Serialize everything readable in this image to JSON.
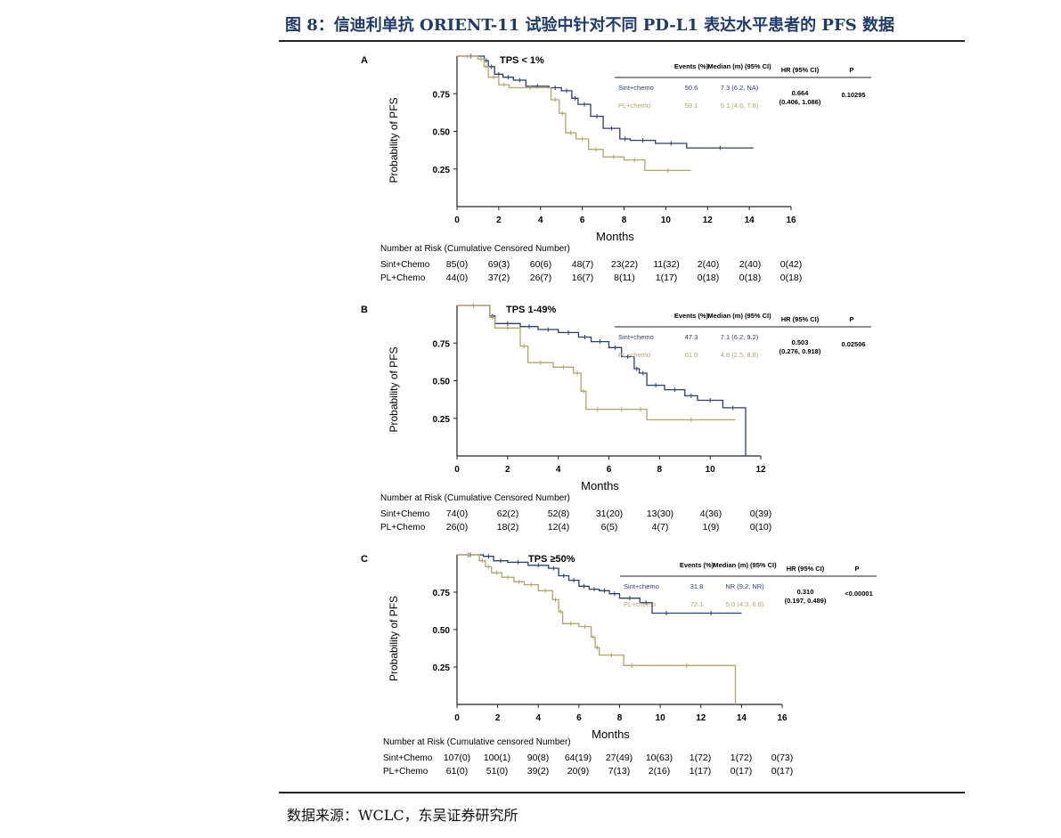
{
  "title": "图 8：信迪利单抗 ORIENT-11 试验中针对不同 PD-L1 表达水平患者的 PFS 数据",
  "source": "数据来源：WCLC，东吴证券研究所",
  "colors": {
    "sint": "#2b3f6e",
    "pl": "#b3a46a",
    "axis": "#222222"
  },
  "chart_data": [
    {
      "type": "line",
      "panel_label": "A",
      "subtitle": "TPS < 1%",
      "ylabel": "Probability of PFS",
      "xlabel": "Months",
      "xlim": [
        0,
        16
      ],
      "ylim": [
        0,
        1
      ],
      "x_ticks": [
        "0",
        "2",
        "4",
        "6",
        "8",
        "10",
        "12",
        "14",
        "16"
      ],
      "y_ticks": [
        "0.25",
        "0.50",
        "0.75"
      ],
      "table": {
        "headers": [
          "Events (%)",
          "Median (m) (95% CI)",
          "HR (95% CI)",
          "P"
        ],
        "rows": [
          {
            "name": "Sint+chemo",
            "events": "50.6",
            "median": "7.3 (6.2, NA)"
          },
          {
            "name": "PL+chemo",
            "events": "59.1",
            "median": "5.1 (4.6, 7.8)"
          }
        ],
        "hr": "0.664",
        "hr_ci": "(0.406, 1.086)",
        "p": "0.10295"
      },
      "risk_title": "Number at Risk (Cumulative Censored Number)",
      "risk_times": [
        0,
        2,
        4,
        6,
        8,
        10,
        12,
        14,
        16
      ],
      "risk": [
        {
          "name": "Sint+Chemo",
          "values": [
            "85(0)",
            "69(3)",
            "60(6)",
            "48(7)",
            "23(22)",
            "11(32)",
            "2(40)",
            "2(40)",
            "0(42)"
          ]
        },
        {
          "name": "PL+Chemo",
          "values": [
            "44(0)",
            "37(2)",
            "26(7)",
            "16(7)",
            "8(11)",
            "1(17)",
            "0(18)",
            "0(18)",
            "0(18)"
          ]
        }
      ],
      "series": [
        {
          "name": "Sint+chemo",
          "x": [
            0,
            1.3,
            1.5,
            1.8,
            2.2,
            2.7,
            3.3,
            4.4,
            5.0,
            5.5,
            5.8,
            6.4,
            7.0,
            7.8,
            8.3,
            9.5,
            11.0,
            14.2
          ],
          "y": [
            1.0,
            0.97,
            0.93,
            0.88,
            0.86,
            0.84,
            0.8,
            0.79,
            0.77,
            0.72,
            0.68,
            0.6,
            0.52,
            0.45,
            0.44,
            0.42,
            0.39,
            0.39
          ]
        },
        {
          "name": "PL+chemo",
          "x": [
            0,
            1.0,
            1.3,
            1.5,
            2.0,
            2.5,
            4.5,
            4.9,
            5.2,
            5.7,
            6.3,
            7.0,
            8.0,
            9.0,
            11.2
          ],
          "y": [
            1.0,
            0.98,
            0.93,
            0.86,
            0.81,
            0.79,
            0.71,
            0.62,
            0.49,
            0.45,
            0.38,
            0.33,
            0.31,
            0.24,
            0.24
          ]
        }
      ]
    },
    {
      "type": "line",
      "panel_label": "B",
      "subtitle": "TPS 1-49%",
      "ylabel": "Probability of PFS",
      "xlabel": "Months",
      "xlim": [
        0,
        12
      ],
      "ylim": [
        0,
        1
      ],
      "x_ticks": [
        "0",
        "2",
        "4",
        "6",
        "8",
        "10",
        "12"
      ],
      "y_ticks": [
        "0.25",
        "0.50",
        "0.75"
      ],
      "table": {
        "headers": [
          "Events (%)",
          "Median (m) (95% CI)",
          "HR (95% CI)",
          "P"
        ],
        "rows": [
          {
            "name": "Sint+chemo",
            "events": "47.3",
            "median": "7.1 (6.2, 9.2)"
          },
          {
            "name": "PL+chemo",
            "events": "61.5",
            "median": "4.8 (2.5, 8.8)"
          }
        ],
        "hr": "0.503",
        "hr_ci": "(0.276, 0.918)",
        "p": "0.02506"
      },
      "risk_title": "Number at Risk (Cumulative Censored Number)",
      "risk_times": [
        0,
        2,
        4,
        6,
        8,
        10,
        12
      ],
      "risk": [
        {
          "name": "Sint+Chemo",
          "values": [
            "74(0)",
            "62(2)",
            "52(8)",
            "31(20)",
            "13(30)",
            "4(36)",
            "0(39)"
          ]
        },
        {
          "name": "PL+Chemo",
          "values": [
            "26(0)",
            "18(2)",
            "12(4)",
            "6(5)",
            "4(7)",
            "1(9)",
            "0(10)"
          ]
        }
      ],
      "series": [
        {
          "name": "Sint+chemo",
          "x": [
            0,
            1.3,
            1.5,
            2.5,
            3.2,
            4.0,
            4.8,
            5.3,
            6.0,
            6.5,
            7.0,
            7.2,
            7.5,
            8.2,
            9.0,
            9.5,
            10.5,
            11.3,
            11.4
          ],
          "y": [
            1.0,
            0.93,
            0.88,
            0.86,
            0.84,
            0.82,
            0.79,
            0.76,
            0.72,
            0.66,
            0.58,
            0.55,
            0.47,
            0.44,
            0.4,
            0.37,
            0.32,
            0.32,
            0.0
          ]
        },
        {
          "name": "PL+chemo",
          "x": [
            0,
            1.3,
            1.5,
            2.5,
            2.8,
            3.8,
            4.6,
            4.9,
            5.1,
            6.0,
            7.0,
            7.5,
            11.0
          ],
          "y": [
            1.0,
            0.92,
            0.85,
            0.73,
            0.62,
            0.59,
            0.55,
            0.43,
            0.31,
            0.31,
            0.31,
            0.24,
            0.24
          ]
        }
      ]
    },
    {
      "type": "line",
      "panel_label": "C",
      "subtitle": "TPS ≥50%",
      "ylabel": "Probability of PFS",
      "xlabel": "Months",
      "xlim": [
        0,
        16
      ],
      "ylim": [
        0,
        1
      ],
      "x_ticks": [
        "0",
        "2",
        "4",
        "6",
        "8",
        "10",
        "12",
        "14",
        "16"
      ],
      "y_ticks": [
        "0.25",
        "0.50",
        "0.75"
      ],
      "table": {
        "headers": [
          "Events (%)",
          "Median (m) (95% CI)",
          "HR (95% CI)",
          "P"
        ],
        "rows": [
          {
            "name": "Sint+chemo",
            "events": "31.8",
            "median": "NR (9.2, NR)"
          },
          {
            "name": "PL+chemo",
            "events": "72.1",
            "median": "5.0 (4.3, 6.8)"
          }
        ],
        "hr": "0.310",
        "hr_ci": "(0.197, 0.489)",
        "p": "<0.00001"
      },
      "risk_title": "Number at Risk (Cumulative censored Number)",
      "risk_times": [
        0,
        2,
        4,
        6,
        8,
        10,
        12,
        14,
        16
      ],
      "risk": [
        {
          "name": "Sint+Chemo",
          "values": [
            "107(0)",
            "100(1)",
            "90(8)",
            "64(19)",
            "27(49)",
            "10(63)",
            "1(72)",
            "1(72)",
            "0(73)"
          ]
        },
        {
          "name": "PL+Chemo",
          "values": [
            "61(0)",
            "51(0)",
            "39(2)",
            "20(9)",
            "7(13)",
            "2(16)",
            "1(17)",
            "0(17)",
            "0(17)"
          ]
        }
      ],
      "series": [
        {
          "name": "Sint+chemo",
          "x": [
            0,
            1.3,
            1.8,
            2.5,
            3.5,
            4.5,
            5.0,
            5.5,
            6.0,
            6.5,
            7.0,
            7.5,
            8.0,
            9.0,
            9.6,
            11.0,
            14.0
          ],
          "y": [
            1.0,
            0.99,
            0.96,
            0.95,
            0.93,
            0.91,
            0.86,
            0.83,
            0.79,
            0.77,
            0.76,
            0.74,
            0.71,
            0.68,
            0.61,
            0.61,
            0.61
          ]
        },
        {
          "name": "PL+chemo",
          "x": [
            0,
            1.1,
            1.4,
            1.7,
            2.2,
            2.8,
            3.3,
            4.0,
            4.7,
            5.0,
            5.2,
            6.0,
            6.6,
            6.8,
            7.0,
            8.2,
            9.0,
            13.6,
            13.7
          ],
          "y": [
            1.0,
            0.96,
            0.92,
            0.88,
            0.85,
            0.82,
            0.8,
            0.76,
            0.7,
            0.62,
            0.54,
            0.52,
            0.45,
            0.38,
            0.33,
            0.26,
            0.26,
            0.26,
            0.0
          ]
        }
      ]
    }
  ]
}
